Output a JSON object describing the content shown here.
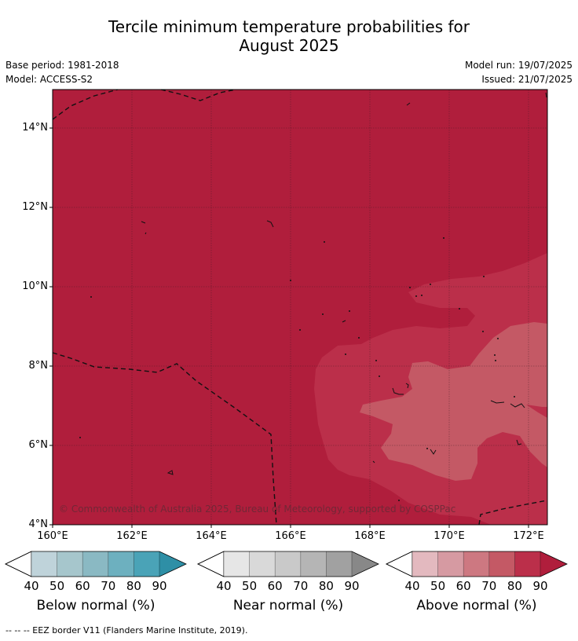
{
  "title_line1": "Tercile minimum temperature probabilities for",
  "title_line2": "August 2025",
  "base_period": "Base period: 1981-2018",
  "model": "Model: ACCESS-S2",
  "model_run": "Model run: 19/07/2025",
  "issued": "Issued: 21/07/2025",
  "lat_labels": [
    "14°N",
    "12°N",
    "10°N",
    "8°N",
    "6°N",
    "4°N"
  ],
  "lon_labels": [
    "160°E",
    "162°E",
    "164°E",
    "166°E",
    "168°E",
    "170°E",
    "172°E"
  ],
  "copyright": "© Commonwealth of Australia 2025, Bureau of Meteorology, supported by COSPPac",
  "colorbars": [
    {
      "title": "Below normal (%)",
      "ticks": [
        "40",
        "50",
        "60",
        "70",
        "80",
        "90"
      ],
      "colors": [
        "#ffffff",
        "#bfd3da",
        "#a6c6cc",
        "#8ab9c3",
        "#6db0bf",
        "#4aa3b7",
        "#2e8fa6"
      ]
    },
    {
      "title": "Near normal (%)",
      "ticks": [
        "40",
        "50",
        "60",
        "70",
        "80",
        "90"
      ],
      "colors": [
        "#ffffff",
        "#e6e6e6",
        "#d9d9d9",
        "#c9c9c9",
        "#b5b5b5",
        "#a1a1a1",
        "#888888"
      ]
    },
    {
      "title": "Above normal (%)",
      "ticks": [
        "40",
        "50",
        "60",
        "70",
        "80",
        "90"
      ],
      "colors": [
        "#ffffff",
        "#e3b9bf",
        "#d69aa2",
        "#cd7881",
        "#c45965",
        "#bb2f4a",
        "#b01e3c"
      ]
    }
  ],
  "legend_note": "--  --  -- EEZ border V11 (Flanders Marine Institute, 2019).",
  "map_colors": {
    "p80": "#b01e3c",
    "p70": "#bb2f4a",
    "p60": "#c45965"
  }
}
